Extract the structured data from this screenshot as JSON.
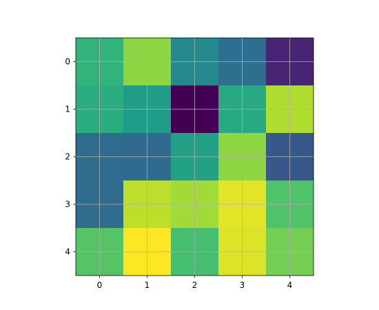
{
  "chart_data": {
    "type": "heatmap",
    "colormap": "viridis",
    "values": [
      [
        0.65,
        0.83,
        0.47,
        0.36,
        0.1
      ],
      [
        0.62,
        0.55,
        0.0,
        0.6,
        0.88
      ],
      [
        0.35,
        0.34,
        0.57,
        0.83,
        0.27
      ],
      [
        0.35,
        0.9,
        0.86,
        0.96,
        0.72
      ],
      [
        0.73,
        1.0,
        0.7,
        0.95,
        0.79
      ]
    ],
    "xlim": [
      -0.5,
      4.5
    ],
    "ylim": [
      4.5,
      -0.5
    ],
    "xticks": [
      0,
      1,
      2,
      3,
      4
    ],
    "yticks": [
      0,
      1,
      2,
      3,
      4
    ],
    "grid": true
  }
}
